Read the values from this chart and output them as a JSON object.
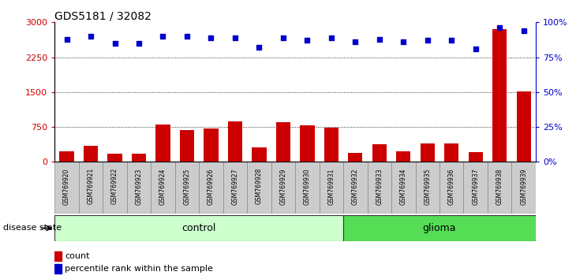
{
  "title": "GDS5181 / 32082",
  "samples": [
    "GSM769920",
    "GSM769921",
    "GSM769922",
    "GSM769923",
    "GSM769924",
    "GSM769925",
    "GSM769926",
    "GSM769927",
    "GSM769928",
    "GSM769929",
    "GSM769930",
    "GSM769931",
    "GSM769932",
    "GSM769933",
    "GSM769934",
    "GSM769935",
    "GSM769936",
    "GSM769937",
    "GSM769938",
    "GSM769939"
  ],
  "counts": [
    220,
    350,
    170,
    170,
    800,
    680,
    720,
    870,
    310,
    860,
    790,
    730,
    200,
    380,
    230,
    390,
    390,
    215,
    2850,
    1510
  ],
  "percentile_ranks": [
    88,
    90,
    85,
    85,
    90,
    90,
    89,
    89,
    82,
    89,
    87,
    89,
    86,
    88,
    86,
    87,
    87,
    81,
    96,
    94
  ],
  "control_count": 12,
  "glioma_count": 8,
  "bar_color": "#cc0000",
  "dot_color": "#0000cc",
  "control_bg": "#ccffcc",
  "glioma_bg": "#55dd55",
  "plot_bg": "#ffffff",
  "cell_bg": "#cccccc",
  "cell_border": "#888888",
  "ylim_left": [
    0,
    3000
  ],
  "ylim_right": [
    0,
    100
  ],
  "yticks_left": [
    0,
    750,
    1500,
    2250,
    3000
  ],
  "yticks_right": [
    0,
    25,
    50,
    75,
    100
  ],
  "ytick_labels_left": [
    "0",
    "750",
    "1500",
    "2250",
    "3000"
  ],
  "ytick_labels_right": [
    "0%",
    "25%",
    "50%",
    "75%",
    "100%"
  ],
  "legend_count_label": "count",
  "legend_pct_label": "percentile rank within the sample",
  "disease_state_label": "disease state",
  "control_label": "control",
  "glioma_label": "glioma"
}
